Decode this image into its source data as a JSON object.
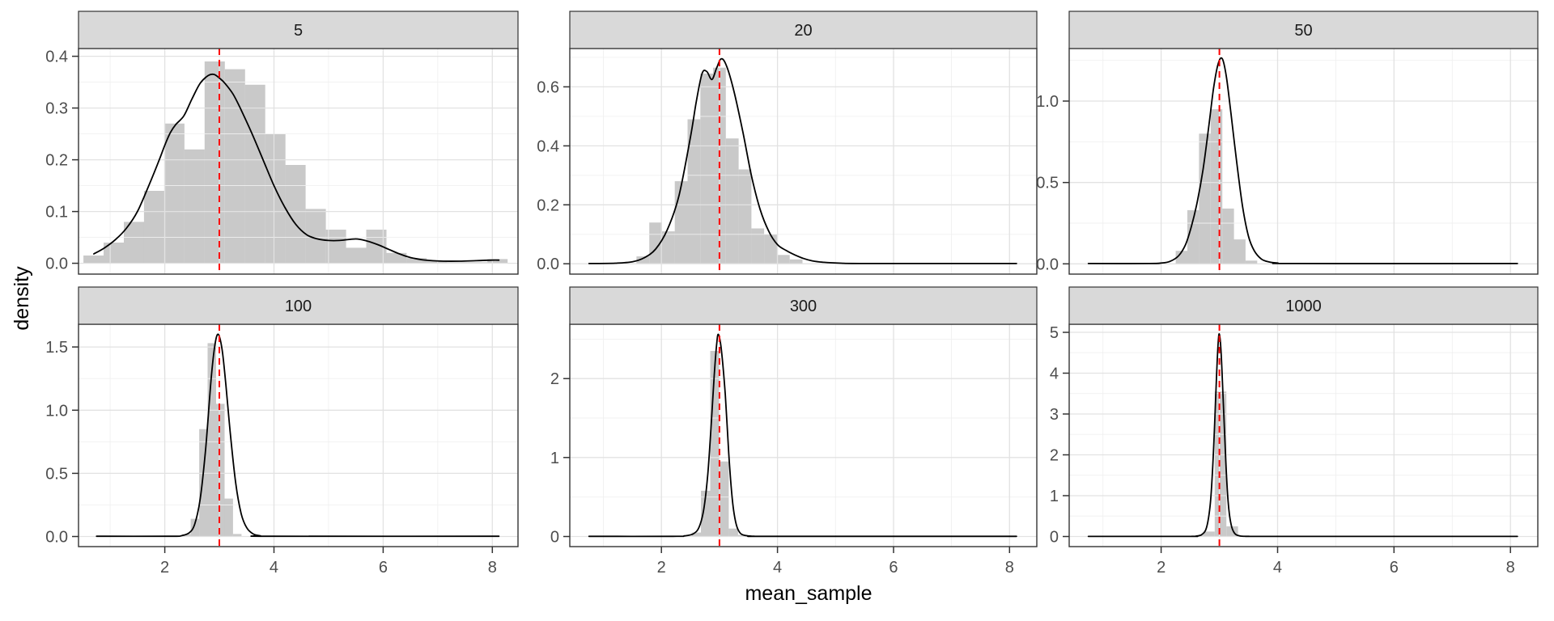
{
  "chart_data": {
    "type": "bar",
    "subtype": "faceted histogram with density curve overlay",
    "title": "",
    "xlabel": "mean_sample",
    "ylabel": "density",
    "legend": "none",
    "grid": "on",
    "xlim": [
      0.42,
      8.47
    ],
    "x_ticks": {
      "values": [
        2,
        4,
        6,
        8
      ],
      "labels": [
        "2",
        "4",
        "6",
        "8"
      ],
      "minor": [
        1,
        3,
        5,
        7
      ]
    },
    "vline": {
      "x": 3.0,
      "color": "#FF0000",
      "style": "dashed"
    },
    "facets": [
      {
        "label": "5",
        "ylim": [
          -0.021,
          0.415
        ],
        "y_ticks": {
          "values": [
            0,
            0.1,
            0.2,
            0.3,
            0.4
          ],
          "labels": [
            "0.0",
            "0.1",
            "0.2",
            "0.3",
            "0.4"
          ],
          "minor": [
            0.05,
            0.15,
            0.25,
            0.35
          ]
        },
        "histogram": {
          "bin_start": 0.51,
          "bin_width": 0.37,
          "heights": [
            0.015,
            0.04,
            0.08,
            0.14,
            0.27,
            0.22,
            0.39,
            0.375,
            0.345,
            0.25,
            0.19,
            0.105,
            0.065,
            0.03,
            0.065,
            0.02,
            0.01,
            0.004,
            0.002,
            0.002,
            0.008
          ]
        },
        "density": [
          [
            0.7,
            0.018
          ],
          [
            0.9,
            0.03
          ],
          [
            1.1,
            0.046
          ],
          [
            1.3,
            0.068
          ],
          [
            1.5,
            0.1
          ],
          [
            1.7,
            0.148
          ],
          [
            1.9,
            0.2
          ],
          [
            2.0,
            0.228
          ],
          [
            2.1,
            0.252
          ],
          [
            2.2,
            0.268
          ],
          [
            2.35,
            0.285
          ],
          [
            2.5,
            0.318
          ],
          [
            2.65,
            0.348
          ],
          [
            2.8,
            0.363
          ],
          [
            2.9,
            0.365
          ],
          [
            3.0,
            0.358
          ],
          [
            3.1,
            0.348
          ],
          [
            3.25,
            0.327
          ],
          [
            3.4,
            0.296
          ],
          [
            3.6,
            0.25
          ],
          [
            3.8,
            0.2
          ],
          [
            4.0,
            0.15
          ],
          [
            4.2,
            0.108
          ],
          [
            4.4,
            0.075
          ],
          [
            4.6,
            0.055
          ],
          [
            4.8,
            0.047
          ],
          [
            5.0,
            0.044
          ],
          [
            5.2,
            0.044
          ],
          [
            5.5,
            0.047
          ],
          [
            5.7,
            0.043
          ],
          [
            5.9,
            0.036
          ],
          [
            6.1,
            0.027
          ],
          [
            6.3,
            0.018
          ],
          [
            6.5,
            0.011
          ],
          [
            6.7,
            0.007
          ],
          [
            6.9,
            0.005
          ],
          [
            7.1,
            0.004
          ],
          [
            7.4,
            0.004
          ],
          [
            7.7,
            0.005
          ],
          [
            8.0,
            0.006
          ],
          [
            8.12,
            0.006
          ]
        ]
      },
      {
        "label": "20",
        "ylim": [
          -0.035,
          0.73
        ],
        "y_ticks": {
          "values": [
            0,
            0.2,
            0.4,
            0.6
          ],
          "labels": [
            "0.0",
            "0.2",
            "0.4",
            "0.6"
          ],
          "minor": [
            0.1,
            0.3,
            0.5,
            0.7
          ]
        },
        "histogram": {
          "bin_start": 1.57,
          "bin_width": 0.22,
          "heights": [
            0.025,
            0.14,
            0.11,
            0.28,
            0.49,
            0.645,
            0.665,
            0.425,
            0.32,
            0.12,
            0.1,
            0.03,
            0.015
          ]
        },
        "density": [
          [
            0.75,
            0.001
          ],
          [
            1.2,
            0.002
          ],
          [
            1.5,
            0.007
          ],
          [
            1.7,
            0.02
          ],
          [
            1.9,
            0.05
          ],
          [
            2.1,
            0.115
          ],
          [
            2.3,
            0.23
          ],
          [
            2.5,
            0.43
          ],
          [
            2.6,
            0.55
          ],
          [
            2.7,
            0.645
          ],
          [
            2.78,
            0.652
          ],
          [
            2.87,
            0.625
          ],
          [
            2.95,
            0.663
          ],
          [
            3.03,
            0.695
          ],
          [
            3.12,
            0.672
          ],
          [
            3.25,
            0.585
          ],
          [
            3.4,
            0.45
          ],
          [
            3.55,
            0.3
          ],
          [
            3.7,
            0.185
          ],
          [
            3.85,
            0.11
          ],
          [
            4.0,
            0.065
          ],
          [
            4.15,
            0.045
          ],
          [
            4.3,
            0.03
          ],
          [
            4.45,
            0.018
          ],
          [
            4.6,
            0.01
          ],
          [
            4.8,
            0.005
          ],
          [
            5.1,
            0.002
          ],
          [
            5.5,
            0.001
          ],
          [
            8.12,
            0.001
          ]
        ]
      },
      {
        "label": "50",
        "ylim": [
          -0.063,
          1.323
        ],
        "y_ticks": {
          "values": [
            0,
            0.5,
            1.0
          ],
          "labels": [
            "0.0",
            "0.5",
            "1.0"
          ],
          "minor": [
            0.25,
            0.75,
            1.25
          ]
        },
        "histogram": {
          "bin_start": 2.25,
          "bin_width": 0.2,
          "heights": [
            0.08,
            0.33,
            0.8,
            0.95,
            0.34,
            0.15,
            0.02
          ]
        },
        "density": [
          [
            0.75,
            0.002
          ],
          [
            1.8,
            0.002
          ],
          [
            2.0,
            0.005
          ],
          [
            2.15,
            0.015
          ],
          [
            2.3,
            0.05
          ],
          [
            2.42,
            0.12
          ],
          [
            2.52,
            0.23
          ],
          [
            2.62,
            0.38
          ],
          [
            2.72,
            0.58
          ],
          [
            2.82,
            0.85
          ],
          [
            2.9,
            1.08
          ],
          [
            2.98,
            1.23
          ],
          [
            3.05,
            1.26
          ],
          [
            3.12,
            1.15
          ],
          [
            3.2,
            0.92
          ],
          [
            3.3,
            0.62
          ],
          [
            3.4,
            0.35
          ],
          [
            3.5,
            0.17
          ],
          [
            3.6,
            0.08
          ],
          [
            3.72,
            0.03
          ],
          [
            3.85,
            0.012
          ],
          [
            4.0,
            0.005
          ],
          [
            4.3,
            0.002
          ],
          [
            8.12,
            0.002
          ]
        ]
      },
      {
        "label": "100",
        "ylim": [
          -0.08,
          1.68
        ],
        "y_ticks": {
          "values": [
            0,
            0.5,
            1.0,
            1.5
          ],
          "labels": [
            "0.0",
            "0.5",
            "1.0",
            "1.5"
          ],
          "minor": [
            0.25,
            0.75,
            1.25
          ]
        },
        "histogram": {
          "bin_start": 2.32,
          "bin_width": 0.155,
          "heights": [
            0.02,
            0.14,
            0.85,
            1.53,
            1.05,
            0.3,
            0.02
          ]
        },
        "density": [
          [
            0.75,
            0.002
          ],
          [
            2.1,
            0.002
          ],
          [
            2.3,
            0.006
          ],
          [
            2.45,
            0.03
          ],
          [
            2.55,
            0.1
          ],
          [
            2.65,
            0.3
          ],
          [
            2.75,
            0.7
          ],
          [
            2.85,
            1.25
          ],
          [
            2.92,
            1.52
          ],
          [
            2.98,
            1.6
          ],
          [
            3.05,
            1.48
          ],
          [
            3.12,
            1.2
          ],
          [
            3.2,
            0.82
          ],
          [
            3.3,
            0.42
          ],
          [
            3.4,
            0.18
          ],
          [
            3.5,
            0.07
          ],
          [
            3.62,
            0.02
          ],
          [
            3.75,
            0.006
          ],
          [
            3.95,
            0.002
          ],
          [
            8.12,
            0.002
          ]
        ]
      },
      {
        "label": "300",
        "ylim": [
          -0.128,
          2.688
        ],
        "y_ticks": {
          "values": [
            0,
            1,
            2
          ],
          "labels": [
            "0",
            "1",
            "2"
          ],
          "minor": [
            0.5,
            1.5,
            2.5
          ]
        },
        "histogram": {
          "bin_start": 2.52,
          "bin_width": 0.16,
          "heights": [
            0.05,
            0.58,
            2.35,
            0.95,
            0.1,
            0.02
          ]
        },
        "density": [
          [
            0.75,
            0.002
          ],
          [
            2.2,
            0.002
          ],
          [
            2.4,
            0.008
          ],
          [
            2.55,
            0.035
          ],
          [
            2.65,
            0.12
          ],
          [
            2.73,
            0.35
          ],
          [
            2.8,
            0.8
          ],
          [
            2.86,
            1.45
          ],
          [
            2.91,
            2.05
          ],
          [
            2.95,
            2.42
          ],
          [
            2.98,
            2.56
          ],
          [
            3.03,
            2.38
          ],
          [
            3.1,
            1.8
          ],
          [
            3.16,
            1.05
          ],
          [
            3.22,
            0.48
          ],
          [
            3.28,
            0.18
          ],
          [
            3.35,
            0.05
          ],
          [
            3.45,
            0.012
          ],
          [
            3.6,
            0.003
          ],
          [
            3.9,
            0.002
          ],
          [
            8.12,
            0.002
          ]
        ]
      },
      {
        "label": "1000",
        "ylim": [
          -0.248,
          5.198
        ],
        "y_ticks": {
          "values": [
            0,
            1,
            2,
            3,
            4,
            5
          ],
          "labels": [
            "0",
            "1",
            "2",
            "3",
            "4",
            "5"
          ],
          "minor": [
            0.5,
            1.5,
            2.5,
            3.5,
            4.5
          ]
        },
        "histogram": {
          "bin_start": 2.52,
          "bin_width": 0.2,
          "heights": [
            0.03,
            0.12,
            3.55,
            0.25,
            0.02
          ]
        },
        "density": [
          [
            0.75,
            0.002
          ],
          [
            2.45,
            0.002
          ],
          [
            2.6,
            0.01
          ],
          [
            2.7,
            0.05
          ],
          [
            2.78,
            0.22
          ],
          [
            2.84,
            0.75
          ],
          [
            2.88,
            1.55
          ],
          [
            2.92,
            2.8
          ],
          [
            2.95,
            3.9
          ],
          [
            2.98,
            4.75
          ],
          [
            3.0,
            4.95
          ],
          [
            3.03,
            4.5
          ],
          [
            3.07,
            3.2
          ],
          [
            3.11,
            1.85
          ],
          [
            3.15,
            0.85
          ],
          [
            3.2,
            0.3
          ],
          [
            3.26,
            0.08
          ],
          [
            3.35,
            0.015
          ],
          [
            3.5,
            0.003
          ],
          [
            3.9,
            0.002
          ],
          [
            8.12,
            0.002
          ]
        ]
      }
    ]
  },
  "styles": {
    "bar_fill": "#C9C9C9",
    "density_line": "#000000",
    "vline_color": "#FF0000",
    "strip_fill": "#D9D9D9",
    "strip_border": "#333333",
    "strip_text": "#1A1A1A",
    "panel_border": "#333333",
    "grid_major": "#E2E2E2",
    "grid_minor": "#F0F0F0",
    "tick_text": "#4D4D4D",
    "tick_mark": "#333333",
    "background": "#FFFFFF"
  }
}
